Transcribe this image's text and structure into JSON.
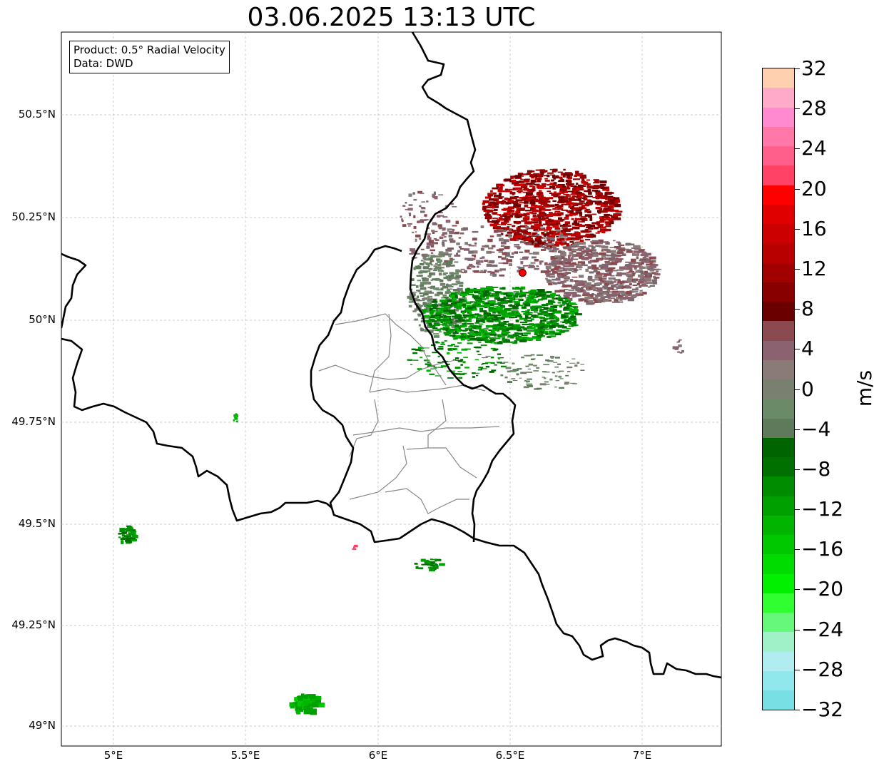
{
  "title": "03.06.2025 13:13 UTC",
  "info": {
    "product": "Product: 0.5° Radial Velocity",
    "source": "Data: DWD"
  },
  "axes": {
    "lat_labels": [
      "50.5°N",
      "50.25°N",
      "50°N",
      "49.75°N",
      "49.5°N",
      "49.25°N",
      "49°N"
    ],
    "lon_labels": [
      "5°E",
      "5.5°E",
      "6°E",
      "6.5°E",
      "7°E"
    ],
    "gridlines": true,
    "lon_range": [
      4.8,
      7.3
    ],
    "lat_range": [
      48.95,
      50.7
    ]
  },
  "radar_site": {
    "lon": 6.547,
    "lat": 50.11,
    "marker_color": "#ff0000"
  },
  "colorbar": {
    "unit": "m/s",
    "min": -32,
    "max": 32,
    "ticks": [
      "32",
      "28",
      "24",
      "20",
      "16",
      "12",
      "8",
      "4",
      "0",
      "−4",
      "−8",
      "−12",
      "−16",
      "−20",
      "−24",
      "−28",
      "−32"
    ],
    "colors_top_to_bottom": [
      "#ffd0b0",
      "#ffaac8",
      "#ff8ad0",
      "#ff78a8",
      "#ff5f8a",
      "#ff4266",
      "#ff0000",
      "#e00000",
      "#cc0000",
      "#b80000",
      "#a00000",
      "#880000",
      "#6a0000",
      "#8a4a50",
      "#8a6270",
      "#8a7a78",
      "#7a8070",
      "#6a8a68",
      "#5e7a5a",
      "#006400",
      "#007000",
      "#008c00",
      "#00a000",
      "#00b400",
      "#00c800",
      "#00dc00",
      "#00f000",
      "#30ff30",
      "#66f87a",
      "#a0f0c8",
      "#b0ecf0",
      "#90e8ec",
      "#78e0e4"
    ]
  }
}
